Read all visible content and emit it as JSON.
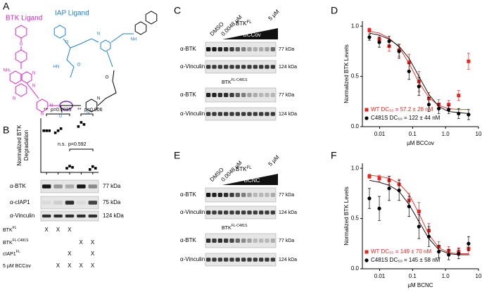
{
  "panel_labels": [
    "A",
    "B",
    "C",
    "D",
    "E",
    "F"
  ],
  "structure": {
    "btk_ligand": "BTK Ligand",
    "iap_ligand": "IAP Ligand",
    "atoms": [
      "NH₂",
      "N",
      "N",
      "N",
      "N",
      "O",
      "N",
      "N",
      "O",
      "O",
      "N",
      "NH",
      "HN",
      "O",
      "O",
      "N"
    ]
  },
  "blot_b": {
    "antibodies": [
      "α-BTK",
      "α-cIAP1",
      "α-Vinculin"
    ],
    "kda": [
      "77 kDa",
      "75 kDa",
      "124 kDa"
    ],
    "conditions": [
      {
        "name": "BTK",
        "sup": "FL",
        "marks": [
          "X",
          "X",
          "X",
          null,
          null
        ]
      },
      {
        "name": "BTK",
        "sup": "FL-C481S",
        "marks": [
          null,
          null,
          null,
          "X",
          "X"
        ]
      },
      {
        "name": "cIAP1",
        "sup": "FL",
        "marks": [
          null,
          null,
          "X",
          null,
          "X"
        ]
      },
      {
        "name": "5 µM BCCov",
        "marks": [
          null,
          "X",
          "X",
          "X",
          "X"
        ]
      }
    ]
  },
  "blot_c": {
    "dmso": "DMSO",
    "low": "0.0048 µM",
    "high": "5 µM",
    "construct": {
      "name": "BTK",
      "sup": "FL"
    },
    "compound": "BCCov",
    "mutant": {
      "name": "BTK",
      "sup": "FL-C481S"
    },
    "antibodies": [
      "α-BTK",
      "α-Vinculin",
      "α-BTK",
      "α-Vinculin"
    ],
    "kda": [
      "77 kDa",
      "124 kDa",
      "77 kDa",
      "124 kDa"
    ]
  },
  "blot_e": {
    "dmso": "DMSO",
    "low": "0.0048 µM",
    "high": "5 µM",
    "construct": {
      "name": "BTK",
      "sup": "FL"
    },
    "compound": "BCNC",
    "mutant": {
      "name": "BTK",
      "sup": "FL-C481S"
    },
    "antibodies": [
      "α-BTK",
      "α-Vinculin",
      "α-BTK",
      "α-Vinculin"
    ],
    "kda": [
      "77 kDa",
      "124 kDa",
      "77 kDa",
      "124 kDa"
    ]
  },
  "chart_data": [
    {
      "type": "scatter",
      "ylabel": [
        "Normalized BTK",
        "Degradation"
      ],
      "categories": [
        null,
        null,
        null,
        null,
        null
      ],
      "ylim": [
        0,
        1.3
      ],
      "values": [
        [
          1.0,
          1.0,
          1.0
        ],
        [
          0.95,
          1.0,
          1.05
        ],
        [
          0.1,
          0.15,
          0.12
        ],
        [
          1.1,
          1.2,
          1.15
        ],
        [
          0.07,
          0.14,
          0.1
        ]
      ],
      "color": "#000000",
      "annotations": [
        "**",
        "p=0.0035",
        "**",
        "p=0.006",
        "n.s.",
        "p=0.592"
      ]
    },
    {
      "type": "line",
      "ylabel": "Normalized BTK Levels",
      "xlabel": "µM BCCov",
      "xscale": "log",
      "xlim": [
        0.003,
        10
      ],
      "xticks": [
        0.01,
        0.1,
        {
          "value": 1,
          "label": "1.0"
        },
        10
      ],
      "ylim": [
        0,
        1.05
      ],
      "yticks": [
        {
          "value": 0,
          "label": "0.0"
        },
        {
          "value": 0.5,
          "label": "0.5"
        },
        {
          "value": 1,
          "label": "1.0"
        }
      ],
      "legend": "lower left",
      "x": [
        0.0049,
        0.0098,
        0.0195,
        0.039,
        0.078,
        0.156,
        0.3125,
        0.625,
        1.25,
        2.5,
        5
      ],
      "series": [
        {
          "name": "WT DC₅₀ = 57.2 ± 28 nM",
          "color": "#e8261f",
          "marker": "square",
          "values": [
            0.96,
            0.87,
            0.8,
            0.76,
            0.64,
            0.45,
            0.28,
            0.22,
            0.22,
            0.31,
            0.65
          ],
          "errors": [
            0.02,
            0.04,
            0.05,
            0.06,
            0.08,
            0.1,
            0.06,
            0.05,
            0.04,
            0.05,
            0.08
          ],
          "fit": [
            0.95,
            0.93,
            0.88,
            0.79,
            0.63,
            0.44,
            0.29,
            0.21,
            0.18,
            0.17,
            0.17
          ]
        },
        {
          "name": "C481S DC₅₀ = 122 ± 44 nM",
          "color": "#000000",
          "marker": "circle",
          "values": [
            0.89,
            0.84,
            0.85,
            0.75,
            0.55,
            0.4,
            0.22,
            0.18,
            0.17,
            0.13,
            0.12
          ],
          "errors": [
            0.03,
            0.05,
            0.05,
            0.07,
            0.08,
            0.09,
            0.07,
            0.05,
            0.04,
            0.05,
            0.05
          ],
          "fit": [
            0.93,
            0.91,
            0.87,
            0.8,
            0.68,
            0.5,
            0.32,
            0.2,
            0.15,
            0.14,
            0.13
          ]
        }
      ]
    },
    {
      "type": "line",
      "ylabel": "Normalized BTK Levels",
      "xlabel": "µM BCNC",
      "xscale": "log",
      "xlim": [
        0.003,
        10
      ],
      "xticks": [
        0.01,
        0.1,
        {
          "value": 1,
          "label": "1.0"
        },
        10
      ],
      "ylim": [
        0,
        1.05
      ],
      "yticks": [
        {
          "value": 0,
          "label": "0.0"
        },
        {
          "value": 0.5,
          "label": "0.5"
        },
        {
          "value": 1,
          "label": "1.0"
        }
      ],
      "legend": "lower left",
      "x": [
        0.0049,
        0.0098,
        0.0195,
        0.039,
        0.078,
        0.156,
        0.3125,
        0.625,
        1.25,
        2.5,
        5
      ],
      "series": [
        {
          "name": "WT DC₅₀ = 149 ± 70 nM",
          "color": "#e8261f",
          "marker": "square",
          "values": [
            0.92,
            0.9,
            0.88,
            0.84,
            0.68,
            0.57,
            0.38,
            0.22,
            0.18,
            0.17,
            0.2
          ],
          "errors": [
            0.02,
            0.03,
            0.04,
            0.05,
            0.07,
            0.09,
            0.07,
            0.05,
            0.04,
            0.04,
            0.06
          ],
          "fit": [
            0.93,
            0.92,
            0.9,
            0.85,
            0.74,
            0.55,
            0.34,
            0.21,
            0.16,
            0.15,
            0.15
          ]
        },
        {
          "name": "C481S DC₅₀ = 145 ± 58 nM",
          "color": "#000000",
          "marker": "circle",
          "values": [
            0.7,
            0.6,
            0.8,
            0.78,
            0.62,
            0.42,
            0.32,
            0.17,
            0.14,
            0.15,
            0.25
          ],
          "errors": [
            0.1,
            0.12,
            0.12,
            0.1,
            0.1,
            0.12,
            0.1,
            0.06,
            0.05,
            0.05,
            0.07
          ],
          "fit": [
            0.88,
            0.86,
            0.83,
            0.77,
            0.64,
            0.47,
            0.3,
            0.19,
            0.15,
            0.14,
            0.14
          ]
        }
      ]
    }
  ]
}
